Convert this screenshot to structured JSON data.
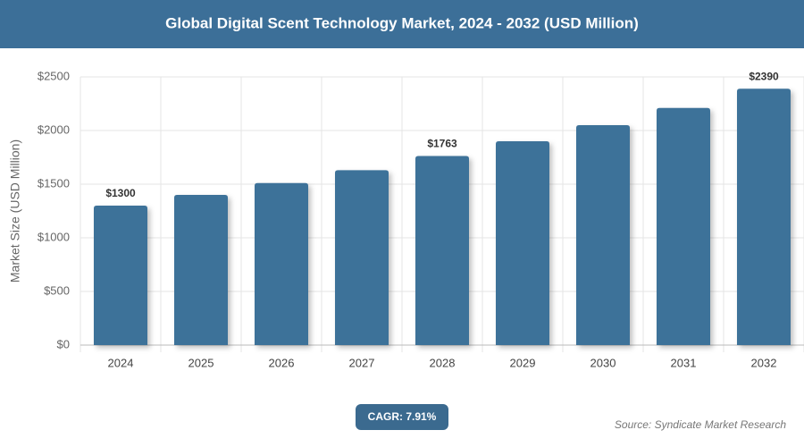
{
  "chart_data": {
    "type": "bar",
    "title": "Global Digital Scent Technology Market, 2024 - 2032 (USD Million)",
    "y_label": "Market Size (USD Million)",
    "categories": [
      "2024",
      "2025",
      "2026",
      "2027",
      "2028",
      "2029",
      "2030",
      "2031",
      "2032"
    ],
    "values": [
      1300,
      1400,
      1510,
      1630,
      1763,
      1900,
      2050,
      2210,
      2390
    ],
    "value_labels": [
      "$1300",
      null,
      null,
      null,
      "$1763",
      null,
      null,
      null,
      "$2390"
    ],
    "color": "#3e7299",
    "ylim": [
      0,
      2500
    ],
    "yticks": [
      {
        "value": 0,
        "label": "$0"
      },
      {
        "value": 500,
        "label": "$500"
      },
      {
        "value": 1000,
        "label": "$1000"
      },
      {
        "value": 1500,
        "label": "$1500"
      },
      {
        "value": 2000,
        "label": "$2000"
      },
      {
        "value": 2500,
        "label": "$2500"
      }
    ],
    "grid": true,
    "badge": "CAGR: 7.91%",
    "source": "Source: Syndicate Market Research"
  }
}
